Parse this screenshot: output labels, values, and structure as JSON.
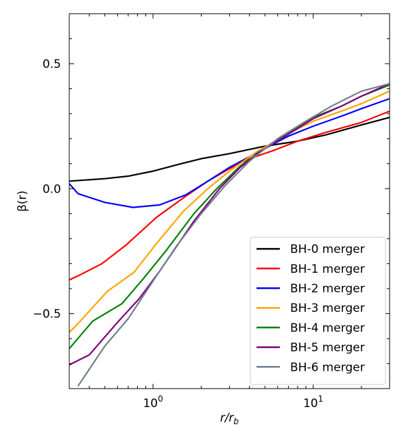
{
  "chart_data": {
    "type": "line",
    "xscale": "log",
    "xlim": [
      0.3,
      30
    ],
    "ylim": [
      -0.8,
      0.7
    ],
    "xlabel": "r/r_b",
    "ylabel": "β(r)",
    "xticks": [
      {
        "value": 1,
        "base": "10",
        "exp": "0"
      },
      {
        "value": 10,
        "base": "10",
        "exp": "1"
      }
    ],
    "yticks": [
      {
        "value": 0.5,
        "label": "0.5"
      },
      {
        "value": 0.0,
        "label": "0.0"
      },
      {
        "value": -0.5,
        "label": "−0.5"
      }
    ],
    "grid": false,
    "legend_position": "lower-right",
    "series": [
      {
        "name": "BH-0 merger",
        "color": "#000000",
        "x": [
          0.3,
          0.5,
          0.7,
          1.0,
          1.5,
          2.0,
          3.0,
          5.0,
          8.0,
          12.0,
          20.0,
          30.0
        ],
        "y": [
          0.03,
          0.04,
          0.05,
          0.07,
          0.1,
          0.12,
          0.14,
          0.17,
          0.19,
          0.215,
          0.255,
          0.285
        ]
      },
      {
        "name": "BH-1 merger",
        "color": "#ff0000",
        "x": [
          0.3,
          0.35,
          0.48,
          0.68,
          1.05,
          1.6,
          2.2,
          3.0,
          4.0,
          5.5,
          8.0,
          12.0,
          20.0,
          30.0
        ],
        "y": [
          -0.365,
          -0.345,
          -0.3,
          -0.225,
          -0.115,
          -0.03,
          0.03,
          0.08,
          0.12,
          0.15,
          0.19,
          0.225,
          0.265,
          0.31
        ]
      },
      {
        "name": "BH-2 merger",
        "color": "#0000ff",
        "x": [
          0.3,
          0.34,
          0.5,
          0.75,
          1.1,
          1.6,
          2.2,
          3.0,
          4.5,
          7.0,
          10.0,
          15.0,
          20.0,
          30.0
        ],
        "y": [
          0.02,
          -0.02,
          -0.055,
          -0.075,
          -0.065,
          -0.025,
          0.03,
          0.085,
          0.145,
          0.21,
          0.25,
          0.29,
          0.32,
          0.36
        ]
      },
      {
        "name": "BH-3 merger",
        "color": "#ffa500",
        "x": [
          0.3,
          0.34,
          0.52,
          0.76,
          1.05,
          1.55,
          2.2,
          3.0,
          4.5,
          7.0,
          10.0,
          15.0,
          20.0,
          30.0
        ],
        "y": [
          -0.575,
          -0.54,
          -0.41,
          -0.335,
          -0.22,
          -0.09,
          0.0,
          0.07,
          0.15,
          0.22,
          0.27,
          0.31,
          0.34,
          0.39
        ]
      },
      {
        "name": "BH-4 merger",
        "color": "#008000",
        "x": [
          0.3,
          0.42,
          0.64,
          0.87,
          1.2,
          1.8,
          2.5,
          3.5,
          5.0,
          7.5,
          10.0,
          15.0,
          20.0,
          30.0
        ],
        "y": [
          -0.64,
          -0.53,
          -0.46,
          -0.36,
          -0.25,
          -0.1,
          0.0,
          0.09,
          0.16,
          0.235,
          0.285,
          0.33,
          0.37,
          0.415
        ]
      },
      {
        "name": "BH-5 merger",
        "color": "#800080",
        "x": [
          0.3,
          0.4,
          0.6,
          0.82,
          1.1,
          1.8,
          2.6,
          3.5,
          5.0,
          7.5,
          10.0,
          15.0,
          20.0,
          30.0
        ],
        "y": [
          -0.705,
          -0.665,
          -0.535,
          -0.44,
          -0.33,
          -0.13,
          0.0,
          0.085,
          0.16,
          0.23,
          0.28,
          0.33,
          0.37,
          0.42
        ]
      },
      {
        "name": "BH-6 merger",
        "color": "#708090",
        "x": [
          0.34,
          0.5,
          0.7,
          1.0,
          1.4,
          2.0,
          2.8,
          4.0,
          6.0,
          9.0,
          13.0,
          20.0,
          30.0
        ],
        "y": [
          -0.79,
          -0.63,
          -0.52,
          -0.37,
          -0.23,
          -0.1,
          0.01,
          0.11,
          0.2,
          0.27,
          0.33,
          0.39,
          0.42
        ]
      }
    ]
  }
}
